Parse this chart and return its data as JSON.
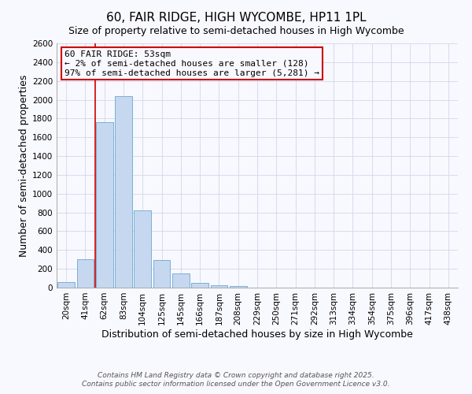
{
  "title": "60, FAIR RIDGE, HIGH WYCOMBE, HP11 1PL",
  "subtitle": "Size of property relative to semi-detached houses in High Wycombe",
  "xlabel": "Distribution of semi-detached houses by size in High Wycombe",
  "ylabel": "Number of semi-detached properties",
  "categories": [
    "20sqm",
    "41sqm",
    "62sqm",
    "83sqm",
    "104sqm",
    "125sqm",
    "145sqm",
    "166sqm",
    "187sqm",
    "208sqm",
    "229sqm",
    "250sqm",
    "271sqm",
    "292sqm",
    "313sqm",
    "334sqm",
    "354sqm",
    "375sqm",
    "396sqm",
    "417sqm",
    "438sqm"
  ],
  "values": [
    60,
    300,
    1760,
    2040,
    820,
    290,
    150,
    50,
    25,
    20,
    0,
    0,
    0,
    0,
    0,
    0,
    0,
    0,
    0,
    0,
    0
  ],
  "bar_color": "#c5d8f0",
  "bar_edge_color": "#7bafd4",
  "vline_color": "#cc0000",
  "vline_x": 1.5,
  "annotation_title": "60 FAIR RIDGE: 53sqm",
  "annotation_line1": "← 2% of semi-detached houses are smaller (128)",
  "annotation_line2": "97% of semi-detached houses are larger (5,281) →",
  "annotation_box_color": "#cc0000",
  "ylim": [
    0,
    2600
  ],
  "yticks": [
    0,
    200,
    400,
    600,
    800,
    1000,
    1200,
    1400,
    1600,
    1800,
    2000,
    2200,
    2400,
    2600
  ],
  "footnote1": "Contains HM Land Registry data © Crown copyright and database right 2025.",
  "footnote2": "Contains public sector information licensed under the Open Government Licence v3.0.",
  "bg_color": "#f8f8ff",
  "grid_color": "#d0d8e8",
  "title_fontsize": 11,
  "subtitle_fontsize": 9,
  "axis_label_fontsize": 9,
  "tick_fontsize": 7.5,
  "annotation_fontsize": 8,
  "footnote_fontsize": 6.5
}
